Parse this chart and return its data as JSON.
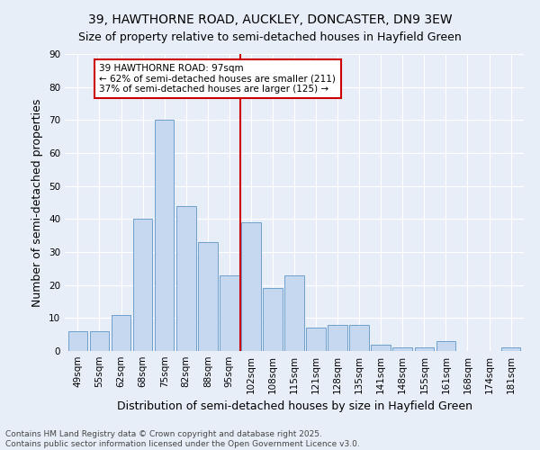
{
  "title": "39, HAWTHORNE ROAD, AUCKLEY, DONCASTER, DN9 3EW",
  "subtitle": "Size of property relative to semi-detached houses in Hayfield Green",
  "xlabel": "Distribution of semi-detached houses by size in Hayfield Green",
  "ylabel": "Number of semi-detached properties",
  "categories": [
    "49sqm",
    "55sqm",
    "62sqm",
    "68sqm",
    "75sqm",
    "82sqm",
    "88sqm",
    "95sqm",
    "102sqm",
    "108sqm",
    "115sqm",
    "121sqm",
    "128sqm",
    "135sqm",
    "141sqm",
    "148sqm",
    "155sqm",
    "161sqm",
    "168sqm",
    "174sqm",
    "181sqm"
  ],
  "values": [
    6,
    6,
    11,
    40,
    70,
    44,
    33,
    23,
    39,
    19,
    23,
    7,
    8,
    8,
    2,
    1,
    1,
    3,
    0,
    0,
    1
  ],
  "bar_color": "#c5d8f0",
  "bar_edge_color": "#6ea0cc",
  "marker_line_color": "#cc0000",
  "annotation_text": "39 HAWTHORNE ROAD: 97sqm\n← 62% of semi-detached houses are smaller (211)\n37% of semi-detached houses are larger (125) →",
  "annotation_box_color": "#cc0000",
  "ylim": [
    0,
    90
  ],
  "yticks": [
    0,
    10,
    20,
    30,
    40,
    50,
    60,
    70,
    80,
    90
  ],
  "footnote": "Contains HM Land Registry data © Crown copyright and database right 2025.\nContains public sector information licensed under the Open Government Licence v3.0.",
  "bg_color": "#e8eef8",
  "plot_bg_color": "#e8eef8",
  "title_fontsize": 10,
  "subtitle_fontsize": 9,
  "axis_label_fontsize": 9,
  "tick_fontsize": 7.5,
  "annotation_fontsize": 7.5,
  "footnote_fontsize": 6.5
}
